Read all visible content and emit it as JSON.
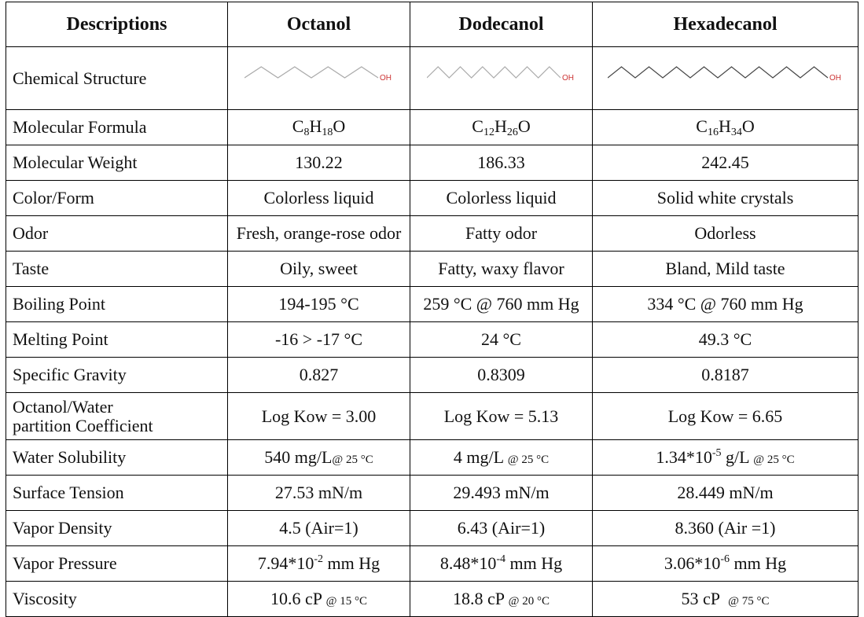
{
  "table": {
    "header": [
      "Descriptions",
      "Octanol",
      "Dodecanol",
      "Hexadecanol"
    ],
    "structure": {
      "label": "Chemical Structure",
      "groups": [
        "OH",
        "OH",
        "OH"
      ]
    },
    "rows": [
      [
        "Molecular Formula",
        [
          "C",
          "8",
          "H",
          "18",
          "O"
        ],
        [
          "C",
          "12",
          "H",
          "26",
          "O"
        ],
        [
          "C",
          "16",
          "H",
          "34",
          "O"
        ]
      ],
      [
        "Molecular Weight",
        "130.22",
        "186.33",
        "242.45"
      ],
      [
        "Color/Form",
        "Colorless liquid",
        "Colorless liquid",
        "Solid white crystals"
      ],
      [
        "Odor",
        "Fresh, orange-rose odor",
        "Fatty odor",
        "Odorless"
      ],
      [
        "Taste",
        "Oily, sweet",
        "Fatty, waxy flavor",
        "Bland, Mild taste"
      ],
      [
        "Boiling Point",
        "194-195 °C",
        "259 °C @ 760 mm Hg",
        "334 °C @ 760 mm Hg"
      ],
      [
        "Melting Point",
        "-16 > -17 °C",
        "24 °C",
        "49.3 °C"
      ],
      [
        "Specific Gravity",
        "0.827",
        "0.8309",
        "0.8187"
      ],
      [
        [
          "Octanol/Water",
          "partition Coefficient"
        ],
        "Log Kow = 3.00",
        "Log Kow = 5.13",
        "Log Kow = 6.65"
      ],
      [
        "Water Solubility",
        [
          "540 mg/L",
          "@ 25 °C"
        ],
        [
          "4 mg/L ",
          "@ 25 °C"
        ],
        [
          "1.34*10",
          "-5",
          " g/L ",
          "@ 25 °C"
        ]
      ],
      [
        "Surface Tension",
        "27.53 mN/m",
        "29.493 mN/m",
        "28.449 mN/m"
      ],
      [
        "Vapor Density",
        "4.5 (Air=1)",
        "6.43 (Air=1)",
        "8.360 (Air =1)"
      ],
      [
        "Vapor Pressure",
        [
          "7.94*10",
          "-2",
          " mm Hg"
        ],
        [
          "8.48*10",
          "-4",
          " mm Hg"
        ],
        [
          "3.06*10",
          "-6",
          " mm Hg"
        ]
      ],
      [
        "Viscosity",
        [
          "10.6 cP ",
          "@ 15 °C"
        ],
        [
          "18.8 cP ",
          "@ 20 °C"
        ],
        [
          "53 cP  ",
          "@ 75 °C"
        ]
      ]
    ]
  }
}
